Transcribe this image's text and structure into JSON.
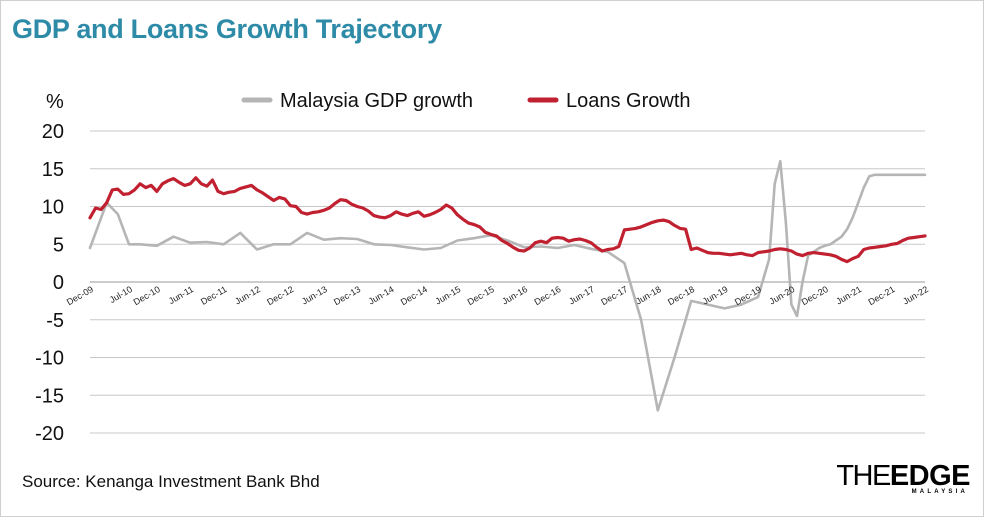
{
  "header": {
    "title": "GDP and Loans Growth Trajectory"
  },
  "footer": {
    "source": "Source: Kenanga Investment Bank Bhd"
  },
  "logo": {
    "the": "THE",
    "edge": "EDGE",
    "sub": "MALAYSIA"
  },
  "colors": {
    "title": "#2d8ba8",
    "gdp": "#b5b5b5",
    "loans": "#c0202f",
    "grid": "#c8c8c8"
  },
  "chart_data": {
    "type": "line",
    "title": "GDP and Loans Growth Trajectory",
    "ylabel": "%",
    "xlabel": "",
    "ylim": [
      -20,
      20
    ],
    "yticks": [
      "20",
      "15",
      "10",
      "5",
      "0",
      "-5",
      "-10",
      "-15",
      "-20"
    ],
    "ytick_values": [
      20,
      15,
      10,
      5,
      0,
      -5,
      -10,
      -15,
      -20
    ],
    "x_range": [
      0,
      150
    ],
    "xticks": [
      "Dec-09",
      "Jul-10",
      "Dec-10",
      "Jun-11",
      "Dec-11",
      "Jun-12",
      "Dec-12",
      "Jun-13",
      "Dec-13",
      "Jun-14",
      "Dec-14",
      "Jun-15",
      "Dec-15",
      "Jun-16",
      "Dec-16",
      "Jun-17",
      "Dec-17",
      "Jun-18",
      "Dec-18",
      "Jun-19",
      "Dec-19",
      "Jun-20",
      "Dec-20",
      "Jun-21",
      "Dec-21",
      "Jun-22"
    ],
    "xtick_months": [
      0,
      7,
      12,
      18,
      24,
      30,
      36,
      42,
      48,
      54,
      60,
      66,
      72,
      78,
      84,
      90,
      96,
      102,
      108,
      114,
      120,
      126,
      132,
      138,
      144,
      150
    ],
    "legend": [
      "Malaysia GDP growth",
      "Loans Growth"
    ],
    "legend_position": "top-center",
    "grid": "horizontal",
    "series": [
      {
        "name": "Malaysia GDP growth",
        "color": "#b5b5b5",
        "x": [
          0,
          3,
          5,
          7,
          9,
          12,
          15,
          18,
          21,
          24,
          27,
          30,
          33,
          36,
          39,
          42,
          45,
          48,
          51,
          54,
          57,
          60,
          63,
          66,
          69,
          72,
          75,
          78,
          81,
          84,
          87,
          90,
          93,
          96,
          99,
          102,
          105,
          108,
          111,
          114,
          117,
          120,
          122,
          123,
          124,
          125,
          126,
          127,
          128,
          129,
          130,
          131,
          132,
          133,
          134,
          135,
          136,
          137,
          138,
          139,
          140,
          141,
          142,
          143,
          144,
          145,
          146,
          147,
          148,
          149,
          150
        ],
        "values": [
          4.5,
          10.5,
          9.0,
          5.0,
          5.0,
          4.8,
          6.0,
          5.2,
          5.3,
          5.0,
          6.5,
          4.3,
          5.0,
          5.0,
          6.5,
          5.6,
          5.8,
          5.7,
          5.0,
          4.9,
          4.6,
          4.3,
          4.5,
          5.5,
          5.8,
          6.2,
          5.5,
          4.6,
          4.7,
          4.5,
          4.9,
          4.4,
          4.0,
          2.5,
          -5.0,
          -17.0,
          -10.0,
          -2.5,
          -3.0,
          -3.5,
          -3.0,
          -2.0,
          3.0,
          13.0,
          16.0,
          8.0,
          -3.0,
          -4.5,
          0.0,
          3.5,
          4.0,
          4.5,
          4.8,
          5.0,
          5.5,
          6.0,
          7.0,
          8.5,
          10.5,
          12.5,
          14.0,
          14.2,
          14.2,
          14.2,
          14.2,
          14.2,
          14.2,
          14.2,
          14.2,
          14.2,
          14.2
        ]
      },
      {
        "name": "Loans Growth",
        "color": "#c0202f",
        "x": [
          0,
          1,
          2,
          3,
          4,
          5,
          6,
          7,
          8,
          9,
          10,
          11,
          12,
          13,
          14,
          15,
          16,
          17,
          18,
          19,
          20,
          21,
          22,
          23,
          24,
          25,
          26,
          27,
          28,
          29,
          30,
          31,
          32,
          33,
          34,
          35,
          36,
          37,
          38,
          39,
          40,
          41,
          42,
          43,
          44,
          45,
          46,
          47,
          48,
          49,
          50,
          51,
          52,
          53,
          54,
          55,
          56,
          57,
          58,
          59,
          60,
          61,
          62,
          63,
          64,
          65,
          66,
          67,
          68,
          69,
          70,
          71,
          72,
          73,
          74,
          75,
          76,
          77,
          78,
          79,
          80,
          81,
          82,
          83,
          84,
          85,
          86,
          87,
          88,
          89,
          90,
          91,
          92,
          93,
          94,
          95,
          96,
          97,
          98,
          99,
          100,
          101,
          102,
          103,
          104,
          105,
          106,
          107,
          108,
          109,
          110,
          111,
          112,
          113,
          114,
          115,
          116,
          117,
          118,
          119,
          120,
          121,
          122,
          123,
          124,
          125,
          126,
          127,
          128,
          129,
          130,
          131,
          132,
          133,
          134,
          135,
          136,
          137,
          138,
          139,
          140,
          141,
          142,
          143,
          144,
          145,
          146,
          147,
          148,
          149,
          150
        ],
        "values": [
          8.5,
          9.8,
          9.6,
          10.5,
          12.2,
          12.3,
          11.6,
          11.7,
          12.2,
          13.0,
          12.5,
          12.8,
          12.0,
          13.0,
          13.4,
          13.7,
          13.2,
          12.8,
          13.0,
          13.8,
          13.0,
          12.7,
          13.5,
          12.0,
          11.7,
          11.9,
          12.0,
          12.4,
          12.6,
          12.8,
          12.2,
          11.8,
          11.3,
          10.8,
          11.2,
          11.0,
          10.1,
          10.0,
          9.2,
          9.0,
          9.2,
          9.3,
          9.5,
          9.8,
          10.4,
          10.9,
          10.8,
          10.3,
          10.0,
          9.8,
          9.4,
          8.8,
          8.6,
          8.5,
          8.8,
          9.3,
          9.0,
          8.8,
          9.1,
          9.3,
          8.7,
          8.9,
          9.2,
          9.6,
          10.2,
          9.8,
          8.9,
          8.3,
          7.8,
          7.6,
          7.3,
          6.6,
          6.3,
          6.1,
          5.5,
          5.1,
          4.6,
          4.2,
          4.1,
          4.5,
          5.2,
          5.4,
          5.2,
          5.8,
          5.9,
          5.8,
          5.4,
          5.6,
          5.7,
          5.5,
          5.2,
          4.6,
          4.1,
          4.3,
          4.4,
          4.7,
          6.9,
          7.0,
          7.1,
          7.3,
          7.6,
          7.9,
          8.1,
          8.2,
          8.0,
          7.5,
          7.1,
          7.0,
          4.3,
          4.5,
          4.2,
          3.9,
          3.8,
          3.8,
          3.7,
          3.6,
          3.7,
          3.8,
          3.6,
          3.5,
          3.9,
          4.0,
          4.1,
          4.3,
          4.4,
          4.3,
          4.1,
          3.7,
          3.5,
          3.8,
          3.9,
          3.8,
          3.7,
          3.6,
          3.4,
          3.0,
          2.7,
          3.1,
          3.4,
          4.3,
          4.5,
          4.6,
          4.7,
          4.8,
          5.0,
          5.1,
          5.5,
          5.8,
          5.9,
          6.0,
          6.1
        ]
      }
    ]
  }
}
